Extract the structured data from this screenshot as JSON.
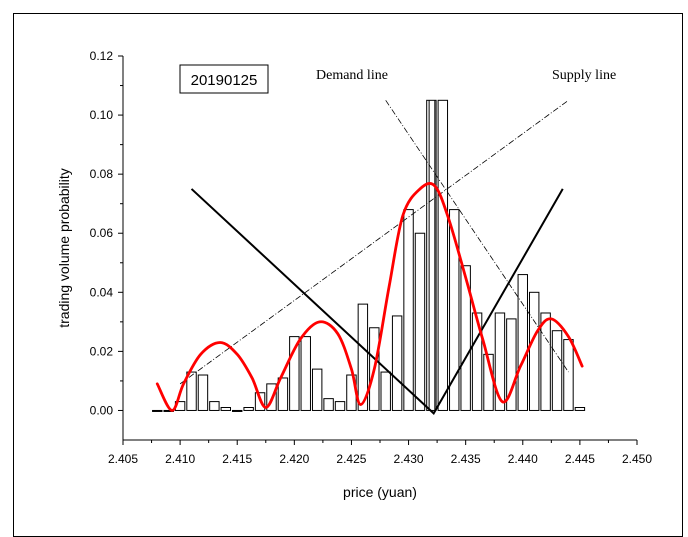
{
  "chart_data": {
    "type": "bar",
    "title": "",
    "xlabel": "price (yuan)",
    "ylabel": "trading volume probability",
    "xlim": [
      2.405,
      2.45
    ],
    "ylim": [
      -0.01,
      0.12
    ],
    "x_ticks": [
      "2.405",
      "2.410",
      "2.415",
      "2.420",
      "2.425",
      "2.430",
      "2.435",
      "2.440",
      "2.445",
      "2.450"
    ],
    "y_ticks": [
      "0.00",
      "0.02",
      "0.04",
      "0.06",
      "0.08",
      "0.10",
      "0.12"
    ],
    "annotations": {
      "date": "20190125",
      "demand": "Demand line",
      "supply": "Supply line"
    },
    "bar_width": 0.001,
    "bars": {
      "x": [
        2.408,
        2.409,
        2.41,
        2.411,
        2.412,
        2.413,
        2.414,
        2.415,
        2.416,
        2.417,
        2.418,
        2.419,
        2.42,
        2.421,
        2.422,
        2.423,
        2.424,
        2.425,
        2.426,
        2.427,
        2.428,
        2.429,
        2.43,
        2.431,
        2.432,
        2.433,
        2.434,
        2.435,
        2.436,
        2.437,
        2.438,
        2.439,
        2.44,
        2.441,
        2.442,
        2.443,
        2.444,
        2.445
      ],
      "y": [
        0.0,
        0.0,
        0.003,
        0.013,
        0.012,
        0.003,
        0.001,
        0.0,
        0.001,
        0.006,
        0.009,
        0.011,
        0.025,
        0.025,
        0.014,
        0.004,
        0.003,
        0.012,
        0.036,
        0.028,
        0.013,
        0.032,
        0.068,
        0.06,
        0.105,
        0.105,
        0.068,
        0.049,
        0.033,
        0.019,
        0.033,
        0.031,
        0.046,
        0.04,
        0.033,
        0.027,
        0.024,
        0.001
      ]
    },
    "fit_curve": {
      "color": "#ff0000",
      "x": [
        2.408,
        2.4093,
        2.4103,
        2.4118,
        2.4135,
        2.415,
        2.4163,
        2.4175,
        2.4188,
        2.4205,
        2.4222,
        2.4238,
        2.425,
        2.4258,
        2.427,
        2.4283,
        2.4295,
        2.431,
        2.4323,
        2.4335,
        2.435,
        2.4365,
        2.4382,
        2.4398,
        2.4413,
        2.4425,
        2.444,
        2.4452
      ],
      "y": [
        0.009,
        0.0,
        0.009,
        0.019,
        0.023,
        0.019,
        0.011,
        0.001,
        0.011,
        0.024,
        0.03,
        0.026,
        0.014,
        0.002,
        0.014,
        0.042,
        0.066,
        0.075,
        0.076,
        0.065,
        0.045,
        0.024,
        0.003,
        0.015,
        0.027,
        0.031,
        0.025,
        0.015
      ]
    },
    "v_lines": {
      "color": "#000000",
      "x": [
        2.411,
        2.4322,
        2.4435
      ],
      "y": [
        0.075,
        -0.001,
        0.075
      ]
    },
    "demand_line": {
      "x": [
        2.428,
        2.444
      ],
      "y": [
        0.105,
        0.013
      ]
    },
    "supply_line": {
      "x": [
        2.41,
        2.444
      ],
      "y": [
        0.009,
        0.105
      ]
    },
    "peak_lines": {
      "x": [
        2.4318,
        2.4323
      ],
      "y_top": 0.105
    }
  }
}
